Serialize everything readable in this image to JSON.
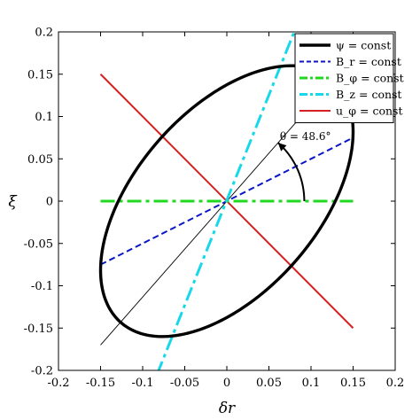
{
  "chart_data": {
    "type": "line",
    "xlabel": "δr",
    "ylabel": "ξ",
    "xlim": [
      -0.2,
      0.2
    ],
    "ylim": [
      -0.2,
      0.2
    ],
    "xticks": [
      -0.2,
      -0.15,
      -0.1,
      -0.05,
      0,
      0.05,
      0.1,
      0.15,
      0.2
    ],
    "xtick_labels": [
      "-0.2",
      "-0.15",
      "-0.1",
      "-0.05",
      "0",
      "0.05",
      "0.1",
      "0.15",
      "0.2"
    ],
    "yticks": [
      -0.2,
      -0.15,
      -0.1,
      -0.05,
      0,
      0.05,
      0.1,
      0.15,
      0.2
    ],
    "ytick_labels": [
      "-0.2",
      "-0.15",
      "-0.1",
      "-0.05",
      "0",
      "0.05",
      "0.1",
      "0.15",
      "0.2"
    ],
    "grid": false,
    "legend_position": "top-right",
    "series": [
      {
        "name": "ψ = const",
        "legend_label": "ψ = const",
        "color": "#000000",
        "style": "solid",
        "shape": "ellipse",
        "center": [
          0,
          0
        ],
        "x_extent": [
          -0.15,
          0.15
        ],
        "y_extent": [
          -0.16,
          0.16
        ],
        "angle_deg": 48.6
      },
      {
        "name": "B_r = const",
        "legend_label": "B_r = const",
        "color": "#0a17c8",
        "style": "dashed",
        "x": [
          -0.15,
          0.15
        ],
        "y": [
          -0.075,
          0.075
        ]
      },
      {
        "name": "B_φ = const",
        "legend_label": "B_φ = const",
        "color": "#20d820",
        "style": "dashdot",
        "x": [
          -0.15,
          0.15
        ],
        "y": [
          0,
          0
        ]
      },
      {
        "name": "B_z = const",
        "legend_label": "B_z = const",
        "color": "#17d8e8",
        "style": "dashdot",
        "x": [
          -0.083,
          0.08
        ],
        "y": [
          -0.205,
          0.2
        ]
      },
      {
        "name": "u_φ = const",
        "legend_label": "u_φ = const",
        "color": "#d42020",
        "style": "solid",
        "x": [
          -0.15,
          0.15
        ],
        "y": [
          0.15,
          -0.15
        ]
      },
      {
        "name": "major-axis",
        "color": "#000000",
        "style": "thin",
        "x": [
          -0.15,
          0.15
        ],
        "y": [
          -0.17,
          0.17
        ]
      }
    ],
    "annotation": {
      "text": "θ = 48.6°",
      "angle_from_deg": 0,
      "angle_to_deg": 48.6,
      "arc_radius": 0.092
    }
  }
}
